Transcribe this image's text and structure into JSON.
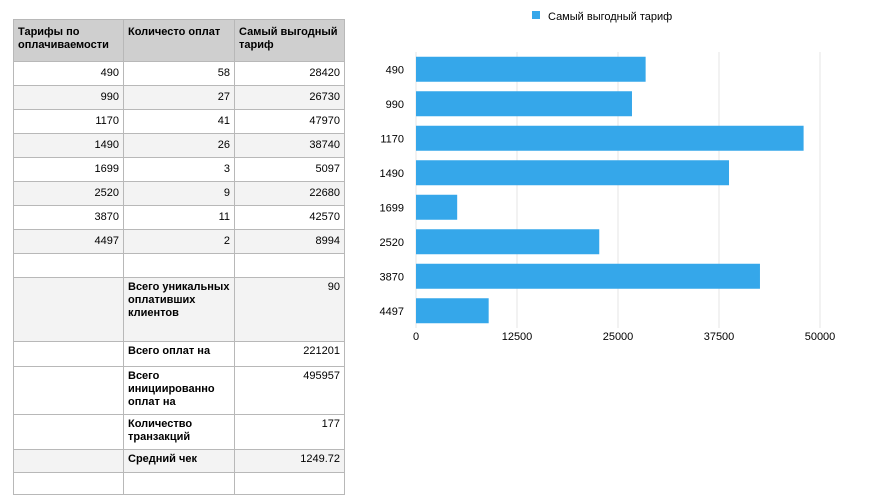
{
  "table": {
    "headers": [
      "Тарифы по оплачиваемости",
      "Количесто оплат",
      "Самый выгодный тариф"
    ],
    "rows": [
      [
        "490",
        "58",
        "28420"
      ],
      [
        "990",
        "27",
        "26730"
      ],
      [
        "1170",
        "41",
        "47970"
      ],
      [
        "1490",
        "26",
        "38740"
      ],
      [
        "1699",
        "3",
        "5097"
      ],
      [
        "2520",
        "9",
        "22680"
      ],
      [
        "3870",
        "11",
        "42570"
      ],
      [
        "4497",
        "2",
        "8994"
      ]
    ],
    "summary": [
      {
        "label": "Всего уникальных оплативших клиентов",
        "value": "90"
      },
      {
        "label": "Всего оплат на",
        "value": "221201"
      },
      {
        "label": "Всего инициированно оплат на",
        "value": "495957"
      },
      {
        "label": "Количество транзакций",
        "value": "177"
      },
      {
        "label": "Средний чек",
        "value": "1249.72"
      }
    ]
  },
  "chart_data": {
    "type": "bar",
    "orientation": "horizontal",
    "categories": [
      "490",
      "990",
      "1170",
      "1490",
      "1699",
      "2520",
      "3870",
      "4497"
    ],
    "series": [
      {
        "name": "Самый выгодный тариф",
        "values": [
          28420,
          26730,
          47970,
          38740,
          5097,
          22680,
          42570,
          8994
        ]
      }
    ],
    "xlim": [
      0,
      50000
    ],
    "xticks": [
      "0",
      "12500",
      "25000",
      "37500",
      "50000"
    ],
    "grid": true,
    "legend": "top",
    "colors": {
      "bar": "#35a7ea",
      "grid": "#e4e4e4"
    }
  }
}
